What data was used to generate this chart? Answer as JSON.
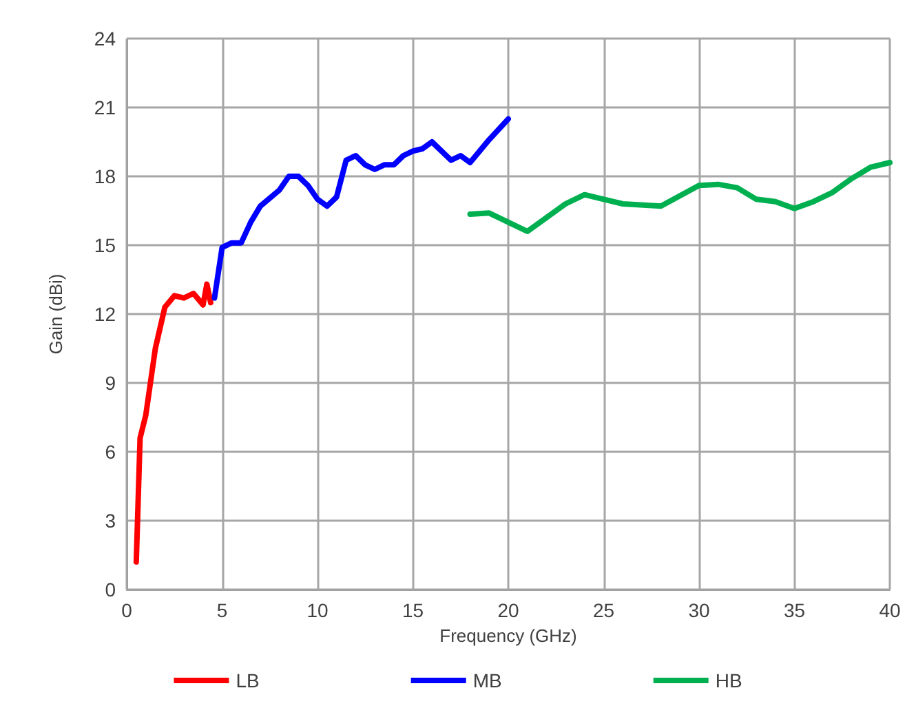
{
  "chart_data": {
    "type": "line",
    "xlabel": "Frequency (GHz)",
    "ylabel": "Gain (dBi)",
    "xlim": [
      0,
      40
    ],
    "xticks": [
      0,
      5,
      10,
      15,
      20,
      25,
      30,
      35,
      40
    ],
    "ylim": [
      0,
      24
    ],
    "yticks": [
      0,
      3,
      6,
      9,
      12,
      15,
      18,
      21,
      24
    ],
    "grid": true,
    "legend": "bottom",
    "marker": "none",
    "line_style": "solid",
    "series": [
      {
        "name": "LB",
        "color": "#ff0000",
        "x": [
          0.5,
          0.7,
          1.0,
          1.5,
          2.0,
          2.5,
          3.0,
          3.5,
          4.0,
          4.2,
          4.4
        ],
        "values": [
          1.2,
          6.6,
          7.6,
          10.5,
          12.3,
          12.8,
          12.7,
          12.9,
          12.4,
          13.3,
          12.5
        ]
      },
      {
        "name": "MB",
        "color": "#0000ff",
        "x": [
          4.6,
          5.0,
          5.5,
          6.0,
          6.5,
          7.0,
          8.0,
          8.5,
          9.0,
          9.5,
          10.0,
          10.5,
          11.0,
          11.5,
          12.0,
          12.5,
          13.0,
          13.5,
          14.0,
          14.5,
          15.0,
          15.5,
          16.0,
          17.0,
          17.5,
          18.0,
          19.0,
          20.0
        ],
        "values": [
          12.7,
          14.9,
          15.1,
          15.1,
          16.0,
          16.7,
          17.4,
          18.0,
          18.0,
          17.6,
          17.0,
          16.7,
          17.1,
          18.7,
          18.9,
          18.5,
          18.3,
          18.5,
          18.5,
          18.9,
          19.1,
          19.2,
          19.5,
          18.7,
          18.9,
          18.6,
          19.6,
          20.5
        ]
      },
      {
        "name": "HB",
        "color": "#00b050",
        "x": [
          18,
          19,
          21,
          23,
          24,
          25,
          26,
          28,
          30,
          31,
          32,
          33,
          34,
          35,
          36,
          37,
          38,
          39,
          40
        ],
        "values": [
          16.35,
          16.4,
          15.6,
          16.8,
          17.2,
          17.0,
          16.8,
          16.7,
          17.6,
          17.65,
          17.5,
          17.0,
          16.9,
          16.6,
          16.9,
          17.3,
          17.9,
          18.4,
          18.6
        ]
      }
    ]
  }
}
